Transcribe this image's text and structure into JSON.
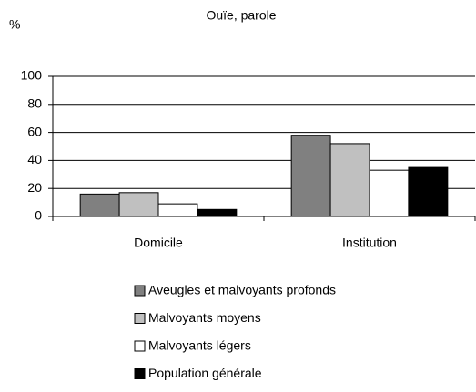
{
  "chart_data": {
    "type": "bar",
    "title": "Ouïe, parole",
    "ylabel": "%",
    "categories": [
      "Domicile",
      "Institution"
    ],
    "series": [
      {
        "name": "Aveugles et malvoyants profonds",
        "color": "#808080",
        "values": [
          16,
          58
        ]
      },
      {
        "name": "Malvoyants moyens",
        "color": "#c0c0c0",
        "values": [
          17,
          52
        ]
      },
      {
        "name": "Malvoyants légers",
        "color": "#ffffff",
        "values": [
          9,
          33
        ]
      },
      {
        "name": "Population générale",
        "color": "#000000",
        "values": [
          5,
          35
        ]
      }
    ],
    "ylim": [
      0,
      100
    ],
    "yticks": [
      0,
      20,
      40,
      60,
      80,
      100
    ],
    "grid": true
  }
}
